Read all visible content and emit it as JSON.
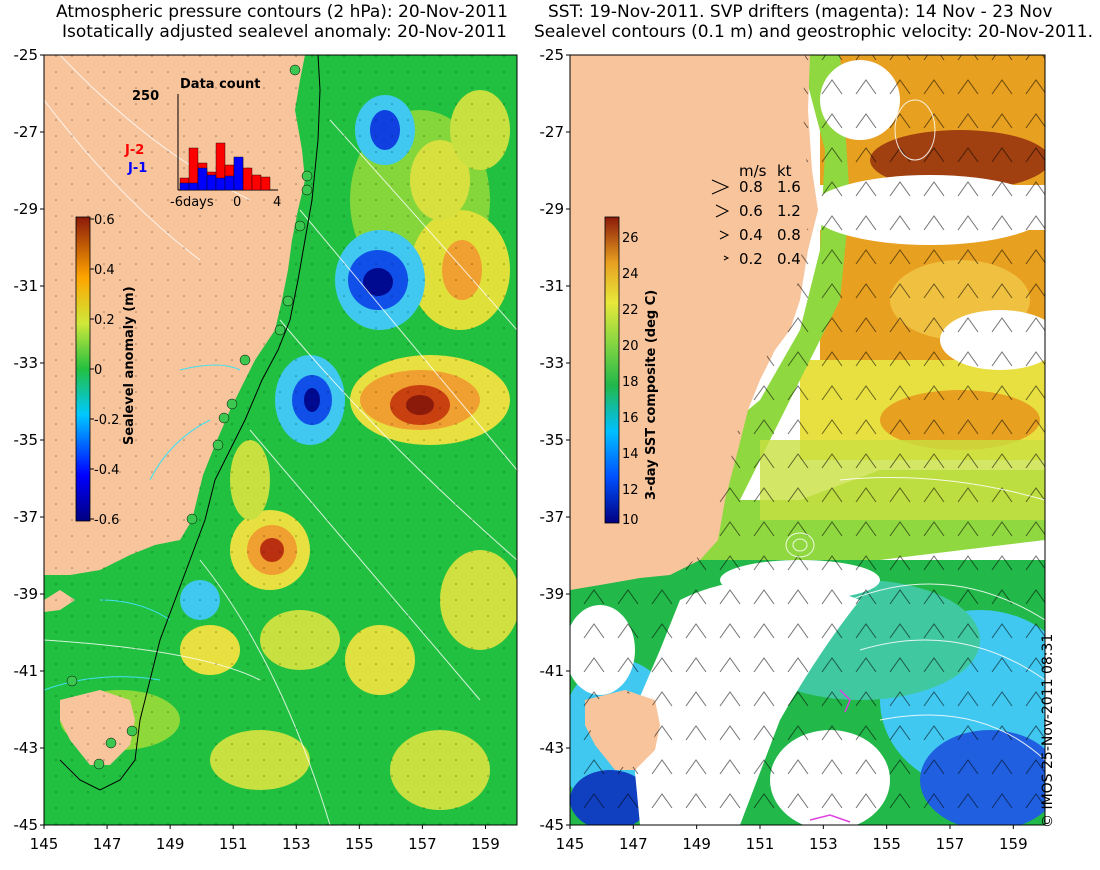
{
  "left_panel": {
    "title_line1": "Atmospheric pressure contours (2 hPa): 20-Nov-2011",
    "title_line2": "Isotatically adjusted sealevel anomaly: 20-Nov-2011",
    "colorbar_label": "Sealevel anomaly (m)",
    "colorbar_ticks": [
      "0.6",
      "0.4",
      "0.2",
      "0",
      "-0.2",
      "-0.4",
      "-0.6"
    ],
    "inset": {
      "title": "Data count",
      "ymax_label": "250",
      "series": [
        {
          "name": "J-2",
          "color": "#ff0000"
        },
        {
          "name": "J-1",
          "color": "#0000ff"
        }
      ],
      "x_labels": [
        "-6days",
        "0",
        "4"
      ]
    }
  },
  "right_panel": {
    "title_line1": "SST: 19-Nov-2011. SVP drifters (magenta): 14 Nov - 23 Nov",
    "title_line2": "Sealevel contours (0.1 m) and geostrophic velocity: 20-Nov-2011.",
    "colorbar_label": "3-day SST composite (deg C)",
    "colorbar_ticks": [
      "26",
      "24",
      "22",
      "20",
      "18",
      "16",
      "14",
      "12",
      "10"
    ],
    "velocity_legend": {
      "header_ms": "m/s",
      "header_kt": "kt",
      "rows": [
        {
          "ms": "0.8",
          "kt": "1.6"
        },
        {
          "ms": "0.6",
          "kt": "1.2"
        },
        {
          "ms": "0.4",
          "kt": "0.8"
        },
        {
          "ms": "0.2",
          "kt": "0.4"
        }
      ]
    }
  },
  "axes": {
    "lat_labels": [
      "-25",
      "-27",
      "-29",
      "-31",
      "-33",
      "-35",
      "-37",
      "-39",
      "-41",
      "-43",
      "-45"
    ],
    "lon_labels": [
      "145",
      "147",
      "149",
      "151",
      "153",
      "155",
      "157",
      "159"
    ]
  },
  "copyright": "© IMOS 25-Nov-2011 08:31",
  "colors": {
    "land": "#f8c49c",
    "ocean_green": "#33c24b",
    "cloud_white": "#ffffff"
  }
}
